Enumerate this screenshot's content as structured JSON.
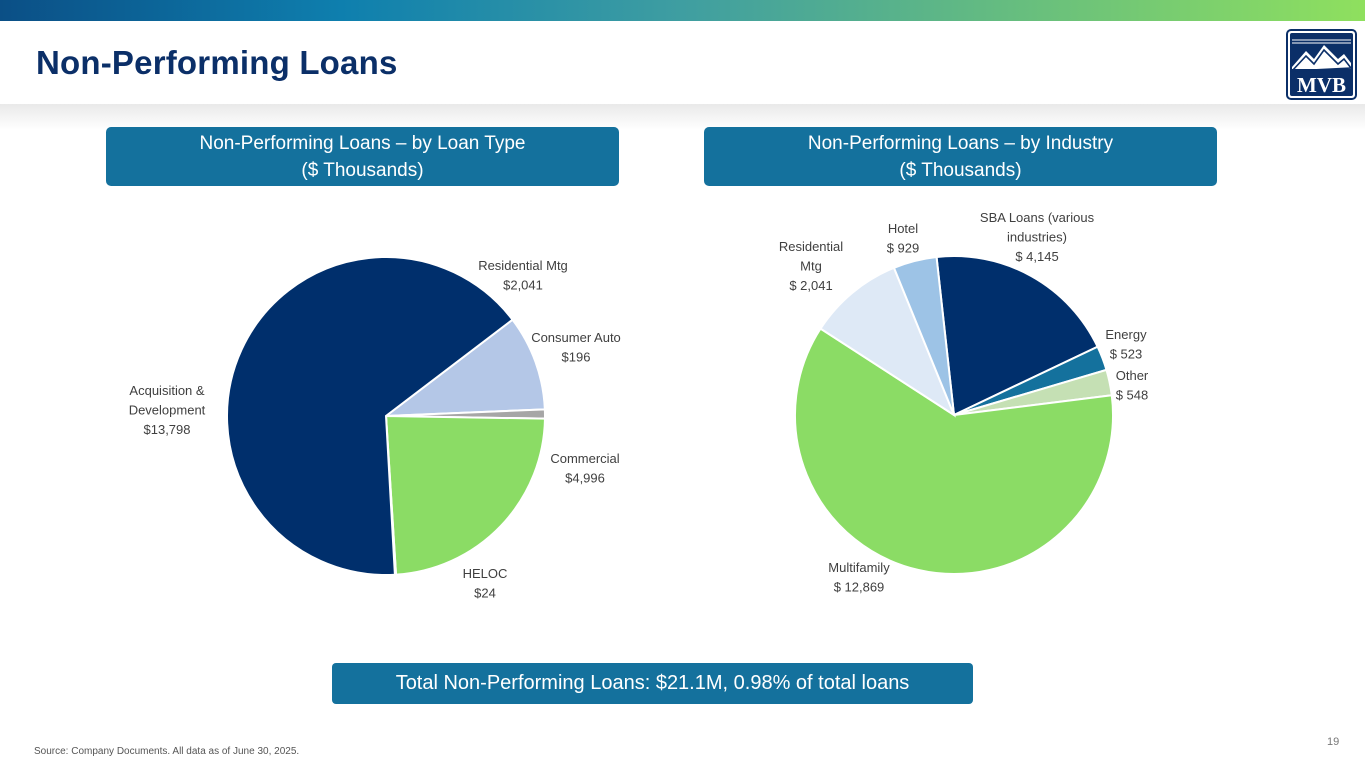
{
  "header": {
    "title": "Non-Performing Loans",
    "logo_text": "MVB",
    "brand_color": "#0b2f68"
  },
  "chart_data": [
    {
      "type": "pie",
      "title": [
        "Non-Performing Loans – by Loan Type",
        "($ Thousands)"
      ],
      "slices": [
        {
          "label": [
            "Residential Mtg",
            "$2,041"
          ],
          "value": 2041,
          "color": "#b4c7e7"
        },
        {
          "label": [
            "Consumer Auto",
            "$196"
          ],
          "value": 196,
          "color": "#a6a6a6"
        },
        {
          "label": [
            "Commercial",
            "$4,996"
          ],
          "value": 4996,
          "color": "#8bdc65"
        },
        {
          "label": [
            "HELOC",
            "$24"
          ],
          "value": 24,
          "color": "#9aa6b6"
        },
        {
          "label": [
            "Acquisition &",
            "Development",
            "$13,798"
          ],
          "value": 13798,
          "color": "#002f6c"
        }
      ]
    },
    {
      "type": "pie",
      "title": [
        "Non-Performing Loans – by Industry",
        "($ Thousands)"
      ],
      "slices": [
        {
          "label": [
            "SBA Loans (various",
            "industries)",
            "$ 4,145"
          ],
          "value": 4145,
          "color": "#002f6c"
        },
        {
          "label": [
            "Energy",
            "$ 523"
          ],
          "value": 523,
          "color": "#14719d"
        },
        {
          "label": [
            "Other",
            "$ 548"
          ],
          "value": 548,
          "color": "#c5e0b4"
        },
        {
          "label": [
            "Multifamily",
            "$ 12,869"
          ],
          "value": 12869,
          "color": "#8bdc65"
        },
        {
          "label": [
            "Residential",
            "Mtg",
            "$ 2,041"
          ],
          "value": 2041,
          "color": "#dee9f6"
        },
        {
          "label": [
            "Hotel",
            "$ 929"
          ],
          "value": 929,
          "color": "#9dc3e6"
        }
      ]
    }
  ],
  "total_banner": "Total Non-Performing Loans: $21.1M, 0.98% of total loans",
  "footer": {
    "source": "Source: Company Documents. All data as of June 30, 2025.",
    "page_number": "19"
  }
}
